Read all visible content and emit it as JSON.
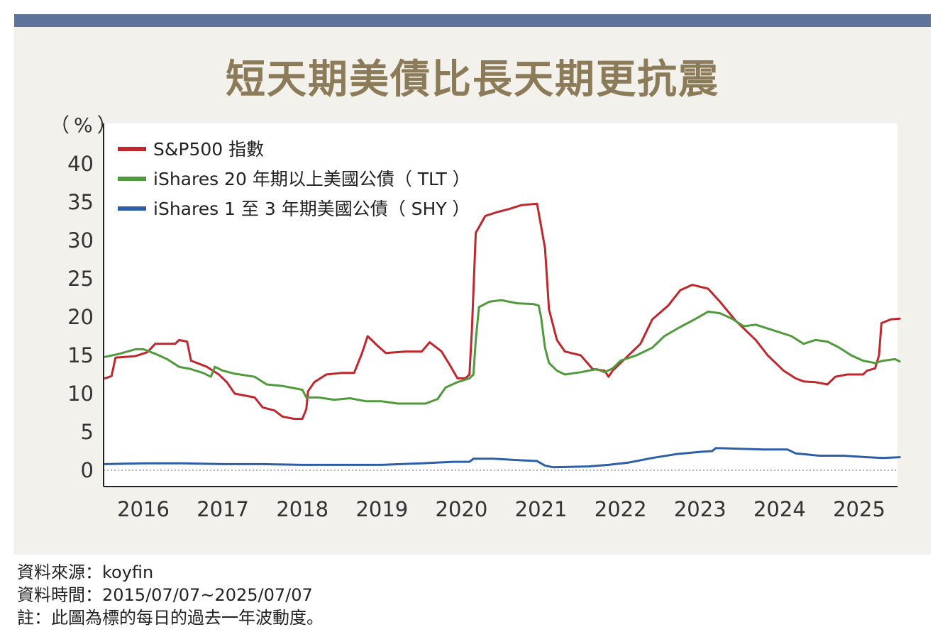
{
  "header": {
    "title": "短天期美債比長天期更抗震"
  },
  "chart_data": {
    "type": "line",
    "title": "短天期美債比長天期更抗震",
    "ylabel": "（%）",
    "ylim": [
      0,
      40
    ],
    "xlim": [
      2015.52,
      2025.51
    ],
    "y_ticks": [
      "0",
      "5",
      "10",
      "15",
      "20",
      "25",
      "30",
      "35",
      "40"
    ],
    "x_ticks": [
      "2016",
      "2017",
      "2018",
      "2019",
      "2020",
      "2021",
      "2022",
      "2023",
      "2024",
      "2025"
    ],
    "legend_position": "top-left",
    "grid": false,
    "series": [
      {
        "name": "S&P500 指數",
        "color": "#c0272d",
        "points": [
          [
            2015.52,
            12.0
          ],
          [
            2015.6,
            12.3
          ],
          [
            2015.65,
            14.7
          ],
          [
            2015.9,
            14.9
          ],
          [
            2016.05,
            15.4
          ],
          [
            2016.15,
            16.5
          ],
          [
            2016.4,
            16.5
          ],
          [
            2016.45,
            17.0
          ],
          [
            2016.55,
            16.8
          ],
          [
            2016.6,
            14.3
          ],
          [
            2016.8,
            13.5
          ],
          [
            2016.95,
            12.5
          ],
          [
            2017.05,
            11.5
          ],
          [
            2017.15,
            10.0
          ],
          [
            2017.4,
            9.5
          ],
          [
            2017.5,
            8.2
          ],
          [
            2017.65,
            7.8
          ],
          [
            2017.75,
            7.0
          ],
          [
            2017.9,
            6.7
          ],
          [
            2018.0,
            6.7
          ],
          [
            2018.05,
            8.0
          ],
          [
            2018.07,
            10.3
          ],
          [
            2018.15,
            11.5
          ],
          [
            2018.3,
            12.5
          ],
          [
            2018.5,
            12.7
          ],
          [
            2018.65,
            12.7
          ],
          [
            2018.75,
            15.3
          ],
          [
            2018.82,
            17.5
          ],
          [
            2018.95,
            16.2
          ],
          [
            2019.05,
            15.3
          ],
          [
            2019.3,
            15.5
          ],
          [
            2019.5,
            15.5
          ],
          [
            2019.6,
            16.7
          ],
          [
            2019.75,
            15.5
          ],
          [
            2019.85,
            13.8
          ],
          [
            2019.95,
            12.0
          ],
          [
            2020.05,
            12.0
          ],
          [
            2020.1,
            12.5
          ],
          [
            2020.13,
            18.0
          ],
          [
            2020.18,
            31.0
          ],
          [
            2020.3,
            33.2
          ],
          [
            2020.45,
            33.7
          ],
          [
            2020.6,
            34.1
          ],
          [
            2020.75,
            34.6
          ],
          [
            2020.95,
            34.8
          ],
          [
            2021.05,
            29.0
          ],
          [
            2021.1,
            21.0
          ],
          [
            2021.2,
            17.0
          ],
          [
            2021.3,
            15.5
          ],
          [
            2021.5,
            15.0
          ],
          [
            2021.65,
            13.2
          ],
          [
            2021.8,
            13.0
          ],
          [
            2021.85,
            12.2
          ],
          [
            2021.9,
            13.0
          ],
          [
            2022.0,
            14.0
          ],
          [
            2022.25,
            16.5
          ],
          [
            2022.4,
            19.7
          ],
          [
            2022.6,
            21.5
          ],
          [
            2022.75,
            23.5
          ],
          [
            2022.9,
            24.2
          ],
          [
            2023.1,
            23.7
          ],
          [
            2023.25,
            22.0
          ],
          [
            2023.45,
            19.5
          ],
          [
            2023.7,
            17.0
          ],
          [
            2023.85,
            15.0
          ],
          [
            2024.05,
            13.0
          ],
          [
            2024.2,
            12.0
          ],
          [
            2024.3,
            11.6
          ],
          [
            2024.45,
            11.5
          ],
          [
            2024.6,
            11.2
          ],
          [
            2024.7,
            12.2
          ],
          [
            2024.85,
            12.5
          ],
          [
            2025.05,
            12.5
          ],
          [
            2025.1,
            13.0
          ],
          [
            2025.2,
            13.3
          ],
          [
            2025.25,
            15.0
          ],
          [
            2025.28,
            19.2
          ],
          [
            2025.4,
            19.7
          ],
          [
            2025.51,
            19.8
          ]
        ]
      },
      {
        "name": "iShares 20 年期以上美國公債（ TLT ）",
        "color": "#4f9a3a",
        "points": [
          [
            2015.52,
            14.8
          ],
          [
            2015.7,
            15.2
          ],
          [
            2015.9,
            15.8
          ],
          [
            2016.0,
            15.8
          ],
          [
            2016.15,
            15.2
          ],
          [
            2016.3,
            14.5
          ],
          [
            2016.45,
            13.5
          ],
          [
            2016.6,
            13.2
          ],
          [
            2016.75,
            12.7
          ],
          [
            2016.85,
            12.2
          ],
          [
            2016.9,
            13.5
          ],
          [
            2017.0,
            13.0
          ],
          [
            2017.15,
            12.6
          ],
          [
            2017.4,
            12.2
          ],
          [
            2017.55,
            11.2
          ],
          [
            2017.75,
            11.0
          ],
          [
            2017.9,
            10.7
          ],
          [
            2018.0,
            10.5
          ],
          [
            2018.05,
            9.5
          ],
          [
            2018.2,
            9.5
          ],
          [
            2018.4,
            9.2
          ],
          [
            2018.6,
            9.4
          ],
          [
            2018.8,
            9.0
          ],
          [
            2019.0,
            9.0
          ],
          [
            2019.2,
            8.7
          ],
          [
            2019.4,
            8.7
          ],
          [
            2019.55,
            8.7
          ],
          [
            2019.7,
            9.3
          ],
          [
            2019.8,
            10.8
          ],
          [
            2019.95,
            11.5
          ],
          [
            2020.1,
            12.0
          ],
          [
            2020.15,
            12.5
          ],
          [
            2020.18,
            17.0
          ],
          [
            2020.22,
            21.3
          ],
          [
            2020.35,
            22.0
          ],
          [
            2020.5,
            22.2
          ],
          [
            2020.7,
            21.8
          ],
          [
            2020.9,
            21.7
          ],
          [
            2020.97,
            21.5
          ],
          [
            2021.0,
            20.0
          ],
          [
            2021.05,
            16.0
          ],
          [
            2021.1,
            14.0
          ],
          [
            2021.2,
            13.0
          ],
          [
            2021.3,
            12.5
          ],
          [
            2021.5,
            12.8
          ],
          [
            2021.7,
            13.2
          ],
          [
            2021.8,
            12.8
          ],
          [
            2021.9,
            13.3
          ],
          [
            2022.0,
            14.3
          ],
          [
            2022.2,
            15.0
          ],
          [
            2022.4,
            16.0
          ],
          [
            2022.55,
            17.5
          ],
          [
            2022.75,
            18.7
          ],
          [
            2022.95,
            19.8
          ],
          [
            2023.1,
            20.7
          ],
          [
            2023.25,
            20.5
          ],
          [
            2023.4,
            19.8
          ],
          [
            2023.55,
            18.8
          ],
          [
            2023.7,
            19.0
          ],
          [
            2023.85,
            18.5
          ],
          [
            2024.0,
            18.0
          ],
          [
            2024.15,
            17.5
          ],
          [
            2024.3,
            16.5
          ],
          [
            2024.45,
            17.0
          ],
          [
            2024.6,
            16.8
          ],
          [
            2024.75,
            16.0
          ],
          [
            2024.9,
            15.0
          ],
          [
            2025.05,
            14.3
          ],
          [
            2025.2,
            14.0
          ],
          [
            2025.3,
            14.3
          ],
          [
            2025.45,
            14.5
          ],
          [
            2025.51,
            14.2
          ]
        ]
      },
      {
        "name": "iShares 1 至 3 年期美國公債（ SHY ）",
        "color": "#2d5ea8",
        "points": [
          [
            2015.52,
            0.8
          ],
          [
            2016.0,
            0.9
          ],
          [
            2016.5,
            0.9
          ],
          [
            2017.0,
            0.8
          ],
          [
            2017.5,
            0.8
          ],
          [
            2018.0,
            0.7
          ],
          [
            2018.5,
            0.7
          ],
          [
            2019.0,
            0.7
          ],
          [
            2019.5,
            0.9
          ],
          [
            2019.9,
            1.1
          ],
          [
            2020.1,
            1.1
          ],
          [
            2020.15,
            1.5
          ],
          [
            2020.4,
            1.5
          ],
          [
            2020.75,
            1.3
          ],
          [
            2020.95,
            1.2
          ],
          [
            2021.05,
            0.6
          ],
          [
            2021.15,
            0.4
          ],
          [
            2021.6,
            0.5
          ],
          [
            2021.85,
            0.7
          ],
          [
            2022.1,
            1.0
          ],
          [
            2022.4,
            1.6
          ],
          [
            2022.7,
            2.1
          ],
          [
            2023.0,
            2.4
          ],
          [
            2023.15,
            2.5
          ],
          [
            2023.2,
            2.9
          ],
          [
            2023.5,
            2.8
          ],
          [
            2023.8,
            2.7
          ],
          [
            2024.1,
            2.7
          ],
          [
            2024.2,
            2.2
          ],
          [
            2024.5,
            1.9
          ],
          [
            2024.8,
            1.9
          ],
          [
            2025.1,
            1.7
          ],
          [
            2025.3,
            1.6
          ],
          [
            2025.51,
            1.7
          ]
        ]
      }
    ]
  },
  "footnotes": {
    "source": "資料來源：koyfin",
    "period": "資料時間：2015/07/07~2025/07/07",
    "note": "註：此圖為標的每日的過去一年波動度。"
  }
}
